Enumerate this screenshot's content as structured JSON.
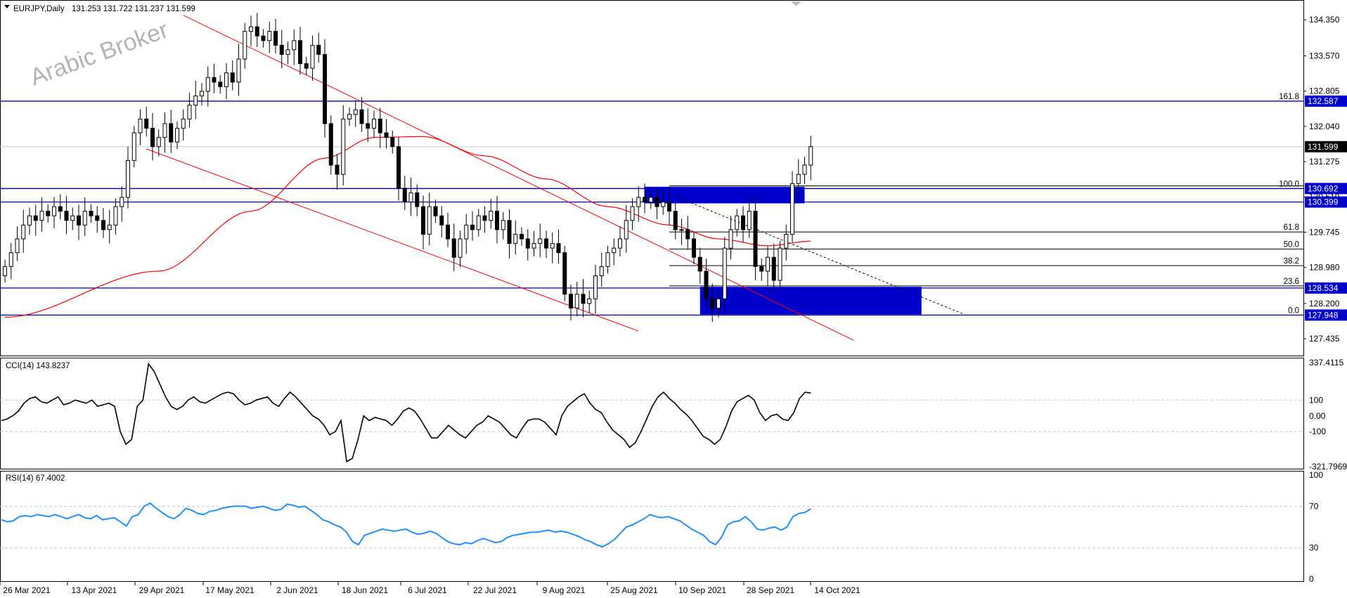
{
  "header": {
    "symbol": "EURJPY,Daily",
    "ohlc": "131.253 131.722 131.237 131.599"
  },
  "watermark": "Arabic Broker",
  "chart_data": [
    {
      "type": "candlestick",
      "title": "EURJPY,Daily",
      "price_axis_ticks": [
        "134.350",
        "133.570",
        "132.805",
        "132.040",
        "131.275",
        "130.510",
        "129.745",
        "128.980",
        "128.200",
        "127.435"
      ],
      "price_range": [
        127.1,
        134.75
      ],
      "date_labels": [
        "26 Mar 2021",
        "13 Apr 2021",
        "29 Apr 2021",
        "17 May 2021",
        "2 Jun 2021",
        "18 Jun 2021",
        "6 Jul 2021",
        "22 Jul 2021",
        "9 Aug 2021",
        "25 Aug 2021",
        "10 Sep 2021",
        "28 Sep 2021",
        "14 Oct 2021"
      ],
      "last_price": "131.599",
      "close": [
        129.0,
        129.3,
        129.6,
        129.9,
        130.1,
        130.0,
        130.2,
        130.1,
        130.3,
        130.2,
        130.0,
        130.1,
        129.9,
        130.2,
        130.1,
        130.0,
        129.8,
        129.9,
        130.3,
        130.5,
        131.3,
        131.9,
        132.2,
        132.0,
        131.6,
        131.8,
        132.1,
        131.7,
        132.0,
        132.2,
        132.5,
        132.7,
        132.8,
        133.1,
        133.0,
        132.9,
        133.2,
        133.0,
        133.5,
        134.1,
        134.2,
        134.0,
        133.9,
        134.1,
        133.8,
        133.6,
        133.7,
        133.9,
        133.4,
        133.3,
        133.8,
        133.6,
        132.1,
        131.2,
        131.0,
        132.2,
        132.3,
        132.4,
        132.1,
        132.0,
        132.2,
        131.9,
        131.8,
        131.6,
        130.7,
        130.4,
        130.6,
        130.3,
        129.7,
        130.3,
        130.1,
        129.9,
        129.6,
        129.2,
        129.6,
        129.9,
        129.8,
        130.1,
        130.0,
        130.2,
        129.8,
        130.0,
        129.5,
        129.7,
        129.6,
        129.4,
        129.5,
        129.6,
        129.4,
        129.5,
        129.3,
        128.4,
        128.1,
        128.4,
        128.2,
        128.3,
        128.8,
        129.0,
        129.3,
        129.4,
        129.6,
        130.0,
        130.3,
        130.5,
        130.4,
        130.5,
        130.3,
        130.4,
        130.2,
        129.8,
        129.8,
        129.6,
        129.2,
        128.9,
        128.3,
        128.1,
        128.3,
        129.4,
        129.8,
        130.1,
        129.8,
        130.2,
        129.0,
        128.9,
        129.2,
        128.7,
        129.4,
        129.7,
        130.8,
        131.0,
        131.2,
        131.599
      ],
      "moving_average": {
        "label": "MA",
        "color": "#ff0000",
        "anchors": [
          [
            0,
            127.9
          ],
          [
            25,
            128.9
          ],
          [
            40,
            130.2
          ],
          [
            52,
            131.35
          ],
          [
            60,
            131.8
          ],
          [
            68,
            131.82
          ],
          [
            78,
            131.4
          ],
          [
            88,
            130.9
          ],
          [
            98,
            130.3
          ],
          [
            108,
            129.9
          ],
          [
            116,
            129.6
          ],
          [
            124,
            129.45
          ],
          [
            131,
            129.55
          ]
        ]
      },
      "channel": {
        "color": "#ff0000",
        "upper": [
          [
            29,
            134.45
          ],
          [
            138,
            127.4
          ]
        ],
        "lower": [
          [
            23,
            131.55
          ],
          [
            103,
            127.6
          ]
        ]
      },
      "horizontal_levels": [
        {
          "price": 132.587,
          "label": "132.587",
          "fib_label": "161.8",
          "color": "#0000cc"
        },
        {
          "price": 130.692,
          "label": "130.692",
          "fib_label": "100.0",
          "color": "#0000cc"
        },
        {
          "price": 130.399,
          "label": "130.399",
          "fib_label": "",
          "color": "#0000cc"
        },
        {
          "price": 128.534,
          "label": "128.534",
          "fib_label": "",
          "color": "#0000cc"
        },
        {
          "price": 127.948,
          "label": "127.948",
          "fib_label": "0.0",
          "color": "#0000cc"
        }
      ],
      "fib_levels": [
        {
          "label": "61.8",
          "price": 129.75
        },
        {
          "label": "50.0",
          "price": 129.38
        },
        {
          "label": "38.2",
          "price": 129.02
        },
        {
          "label": "23.6",
          "price": 128.58
        }
      ],
      "zones": [
        {
          "color": "#0000cc",
          "from_bar": 104,
          "to_bar": 130,
          "price_top": 130.73,
          "price_bottom": 130.37
        },
        {
          "color": "#0000cc",
          "from_bar": 113,
          "to_bar": 149,
          "price_top": 128.56,
          "price_bottom": 127.96
        }
      ],
      "trendline_dashed": {
        "from": [
          109,
          130.52
        ],
        "to": [
          156,
          127.96
        ]
      }
    },
    {
      "type": "line",
      "title": "CCI(14) 143.8237",
      "y_ticks": [
        "337.4115",
        "100",
        "0.00",
        "-100",
        "-321.7969"
      ],
      "y_range": [
        -321.7969,
        337.4115
      ],
      "color": "#000000",
      "values": [
        -30,
        -20,
        0,
        30,
        80,
        110,
        120,
        90,
        80,
        100,
        120,
        70,
        80,
        100,
        90,
        80,
        100,
        60,
        70,
        80,
        60,
        -100,
        -180,
        -150,
        60,
        100,
        330,
        280,
        200,
        120,
        60,
        40,
        60,
        100,
        120,
        90,
        80,
        100,
        120,
        140,
        150,
        140,
        100,
        70,
        80,
        100,
        110,
        120,
        80,
        60,
        110,
        150,
        120,
        80,
        40,
        0,
        -20,
        -60,
        -120,
        -100,
        -30,
        -290,
        -270,
        -150,
        0,
        -30,
        -10,
        -20,
        -30,
        -60,
        -20,
        30,
        50,
        30,
        -20,
        -80,
        -140,
        -140,
        -100,
        -60,
        -90,
        -120,
        -140,
        -100,
        -60,
        -40,
        0,
        -20,
        -40,
        -80,
        -120,
        -140,
        -80,
        -30,
        -20,
        -20,
        -40,
        -80,
        -120,
        0,
        60,
        90,
        120,
        140,
        80,
        40,
        20,
        -40,
        -90,
        -120,
        -150,
        -200,
        -170,
        -100,
        -20,
        60,
        120,
        150,
        110,
        80,
        40,
        10,
        -30,
        -80,
        -130,
        -150,
        -180,
        -150,
        -70,
        30,
        90,
        110,
        130,
        100,
        20,
        -30,
        0,
        10,
        -20,
        -30,
        20,
        110,
        150,
        143.8237
      ]
    },
    {
      "type": "line",
      "title": "RSI(14) 67.4002",
      "y_ticks": [
        "100",
        "70",
        "30",
        "0"
      ],
      "y_range": [
        0,
        100
      ],
      "color": "#1e90ff",
      "values": [
        57,
        55,
        56,
        60,
        61,
        60,
        62,
        61,
        60,
        62,
        60,
        58,
        60,
        62,
        59,
        58,
        61,
        57,
        58,
        59,
        55,
        51,
        60,
        62,
        70,
        73,
        68,
        64,
        60,
        58,
        62,
        68,
        66,
        63,
        62,
        65,
        66,
        68,
        69,
        70,
        70,
        70,
        68,
        69,
        70,
        68,
        66,
        67,
        72,
        71,
        69,
        70,
        66,
        62,
        57,
        55,
        52,
        50,
        45,
        36,
        33,
        42,
        44,
        46,
        48,
        47,
        46,
        47,
        48,
        45,
        43,
        44,
        46,
        44,
        40,
        36,
        34,
        33,
        35,
        34,
        37,
        39,
        37,
        35,
        36,
        40,
        42,
        43,
        44,
        45,
        45,
        46,
        47,
        45,
        46,
        45,
        43,
        41,
        38,
        36,
        33,
        31,
        34,
        38,
        44,
        50,
        52,
        55,
        58,
        62,
        60,
        59,
        60,
        58,
        56,
        52,
        48,
        45,
        42,
        36,
        33,
        40,
        52,
        55,
        56,
        60,
        55,
        48,
        47,
        49,
        50,
        47,
        50,
        60,
        63,
        64,
        67.4002
      ]
    }
  ],
  "colors": {
    "tag_background": "#0000cc",
    "last_price_background": "#000000",
    "cci_line": "#000000",
    "rsi_line": "#1e90ff",
    "ma_line": "#ff0000",
    "channel_line": "#ff0000",
    "grid_dashed": "#c8c8c8"
  }
}
